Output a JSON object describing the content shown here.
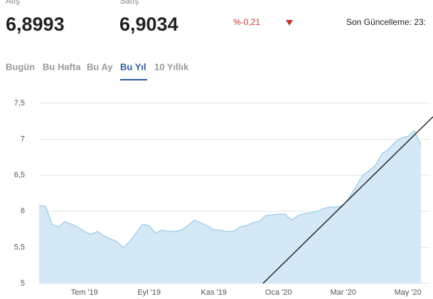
{
  "header": {
    "buy_label": "Alış",
    "buy_value": "6,8993",
    "sell_label": "Satış",
    "sell_value": "6,9034",
    "change": "%-0,21",
    "updated": "Son Güncelleme: 23:"
  },
  "tabs": [
    "Bugün",
    "Bu Hafta",
    "Bu Ay",
    "Bu Yıl",
    "10 Yıllık"
  ],
  "chart_data": {
    "type": "area",
    "categories": [
      null,
      null,
      null,
      null,
      null,
      null,
      null,
      "Tem '19",
      null,
      null,
      null,
      null,
      null,
      null,
      null,
      null,
      null,
      "Eyl '19",
      null,
      null,
      null,
      null,
      null,
      null,
      null,
      null,
      null,
      "Kas '19",
      null,
      null,
      null,
      null,
      null,
      null,
      null,
      null,
      null,
      "Oca '20",
      null,
      null,
      null,
      null,
      null,
      null,
      null,
      null,
      null,
      "Mar '20",
      null,
      null,
      null,
      null,
      null,
      null,
      null,
      null,
      null,
      "May '20",
      null,
      null
    ],
    "series": [
      {
        "color": "#9cc9e6",
        "values": [
          6.08,
          6.07,
          5.82,
          5.78,
          5.86,
          5.82,
          5.78,
          5.72,
          5.68,
          5.72,
          5.66,
          5.62,
          5.58,
          5.5,
          5.58,
          5.7,
          5.82,
          5.8,
          5.7,
          5.74,
          5.72,
          5.72,
          5.74,
          5.8,
          5.88,
          5.84,
          5.8,
          5.74,
          5.74,
          5.72,
          5.72,
          5.78,
          5.8,
          5.84,
          5.86,
          5.94,
          5.95,
          5.96,
          5.96,
          5.88,
          5.94,
          5.97,
          5.98,
          6.0,
          6.04,
          6.06,
          6.06,
          6.08,
          6.2,
          6.35,
          6.5,
          6.56,
          6.64,
          6.8,
          6.86,
          6.96,
          7.02,
          7.04,
          7.12,
          6.92
        ]
      }
    ],
    "ylim": [
      5,
      7.5
    ],
    "yticks": [
      {
        "value": 5,
        "label": "5"
      },
      {
        "value": 5.5,
        "label": "5,5"
      },
      {
        "value": 6,
        "label": "6"
      },
      {
        "value": 6.5,
        "label": "6,5"
      },
      {
        "value": 7,
        "label": "7"
      },
      {
        "value": 7.5,
        "label": "7,5"
      }
    ],
    "grid": true
  }
}
